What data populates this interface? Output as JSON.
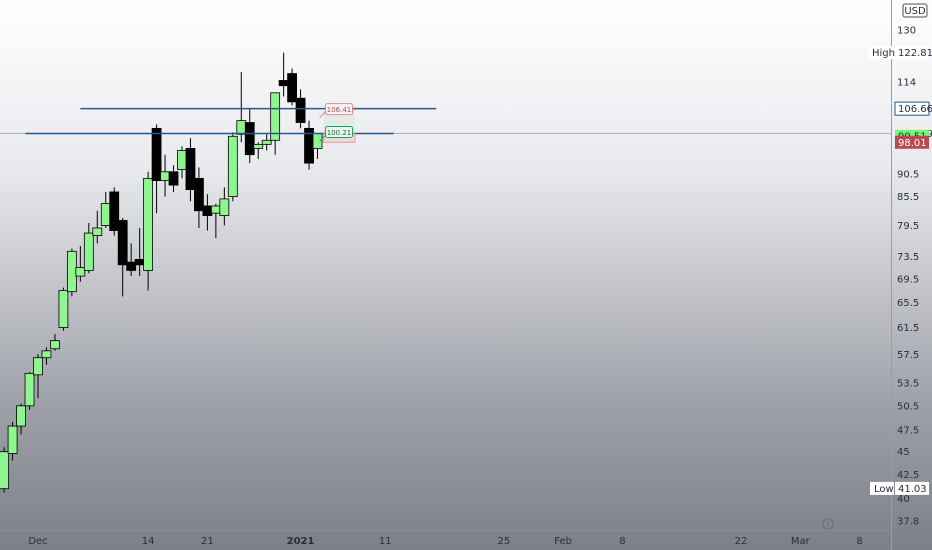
{
  "currency": "USD",
  "chart_data": {
    "type": "candlestick",
    "y_scale": "log",
    "ylim": [
      36.5,
      142
    ],
    "price_ticks": [
      37.8,
      40.0,
      42.5,
      45.0,
      47.5,
      50.5,
      53.5,
      57.5,
      61.5,
      65.5,
      69.5,
      73.5,
      79.5,
      85.5,
      90.5,
      98.0,
      106.66,
      114.0,
      122.81,
      130.0
    ],
    "time_labels": [
      {
        "label": "Dec",
        "day": 0
      },
      {
        "label": "14",
        "day": 13
      },
      {
        "label": "21",
        "day": 20
      },
      {
        "label": "2021",
        "day": 31
      },
      {
        "label": "11",
        "day": 41
      },
      {
        "label": "25",
        "day": 55
      },
      {
        "label": "Feb",
        "day": 62
      },
      {
        "label": "8",
        "day": 69
      },
      {
        "label": "22",
        "day": 83
      },
      {
        "label": "Mar",
        "day": 90
      },
      {
        "label": "8",
        "day": 97
      }
    ],
    "candles": [
      {
        "day": -4,
        "o": 41.0,
        "h": 45.5,
        "l": 40.6,
        "c": 45.0
      },
      {
        "day": -3,
        "o": 44.8,
        "h": 48.5,
        "l": 44.0,
        "c": 48.0
      },
      {
        "day": -2,
        "o": 48.0,
        "h": 50.8,
        "l": 47.0,
        "c": 50.5
      },
      {
        "day": -1,
        "o": 50.5,
        "h": 55.0,
        "l": 50.0,
        "c": 54.8
      },
      {
        "day": 0,
        "o": 54.6,
        "h": 57.5,
        "l": 51.5,
        "c": 57.0
      },
      {
        "day": 1,
        "o": 57.0,
        "h": 58.5,
        "l": 56.0,
        "c": 58.0
      },
      {
        "day": 2,
        "o": 58.3,
        "h": 60.5,
        "l": 58.0,
        "c": 59.5
      },
      {
        "day": 3,
        "o": 61.5,
        "h": 68.0,
        "l": 61.0,
        "c": 67.5
      },
      {
        "day": 4,
        "o": 67.3,
        "h": 75.0,
        "l": 66.5,
        "c": 74.5
      },
      {
        "day": 5,
        "o": 70.0,
        "h": 75.5,
        "l": 69.0,
        "c": 71.5
      },
      {
        "day": 6,
        "o": 71.0,
        "h": 80.0,
        "l": 70.5,
        "c": 78.0
      },
      {
        "day": 7,
        "o": 77.5,
        "h": 82.5,
        "l": 76.0,
        "c": 79.0
      },
      {
        "day": 8,
        "o": 79.5,
        "h": 86.5,
        "l": 79.0,
        "c": 84.0
      },
      {
        "day": 9,
        "o": 86.5,
        "h": 87.5,
        "l": 77.5,
        "c": 78.5
      },
      {
        "day": 10,
        "o": 80.5,
        "h": 81.0,
        "l": 66.5,
        "c": 72.0
      },
      {
        "day": 11,
        "o": 72.5,
        "h": 76.0,
        "l": 70.0,
        "c": 71.0
      },
      {
        "day": 12,
        "o": 73.0,
        "h": 79.0,
        "l": 70.0,
        "c": 72.0
      },
      {
        "day": 13,
        "o": 71.0,
        "h": 91.0,
        "l": 67.5,
        "c": 89.5
      },
      {
        "day": 14,
        "o": 101.5,
        "h": 102.5,
        "l": 82.0,
        "c": 89.0
      },
      {
        "day": 15,
        "o": 89.0,
        "h": 95.0,
        "l": 85.5,
        "c": 91.0
      },
      {
        "day": 16,
        "o": 91.0,
        "h": 92.5,
        "l": 86.5,
        "c": 88.0
      },
      {
        "day": 17,
        "o": 91.5,
        "h": 97.0,
        "l": 89.5,
        "c": 96.0
      },
      {
        "day": 18,
        "o": 96.5,
        "h": 99.0,
        "l": 84.5,
        "c": 87.0
      },
      {
        "day": 19,
        "o": 89.5,
        "h": 92.0,
        "l": 79.0,
        "c": 82.5
      },
      {
        "day": 20,
        "o": 83.5,
        "h": 86.0,
        "l": 78.5,
        "c": 81.5
      },
      {
        "day": 21,
        "o": 82.0,
        "h": 84.0,
        "l": 77.0,
        "c": 83.5
      },
      {
        "day": 22,
        "o": 81.5,
        "h": 87.5,
        "l": 79.5,
        "c": 85.0
      },
      {
        "day": 23,
        "o": 85.5,
        "h": 100.5,
        "l": 84.5,
        "c": 99.5
      },
      {
        "day": 24,
        "o": 100.0,
        "h": 117.0,
        "l": 98.0,
        "c": 103.5
      },
      {
        "day": 25,
        "o": 103.0,
        "h": 106.5,
        "l": 93.0,
        "c": 95.0
      },
      {
        "day": 26,
        "o": 96.5,
        "h": 98.0,
        "l": 94.0,
        "c": 97.5
      },
      {
        "day": 27,
        "o": 97.5,
        "h": 100.0,
        "l": 96.0,
        "c": 98.5
      },
      {
        "day": 28,
        "o": 98.5,
        "h": 111.0,
        "l": 95.0,
        "c": 111.0
      },
      {
        "day": 29,
        "o": 114.5,
        "h": 122.81,
        "l": 110.0,
        "c": 113.0
      },
      {
        "day": 30,
        "o": 116.5,
        "h": 118.0,
        "l": 107.5,
        "c": 108.5
      },
      {
        "day": 31,
        "o": 109.5,
        "h": 112.0,
        "l": 101.5,
        "c": 103.0
      },
      {
        "day": 32,
        "o": 101.5,
        "h": 103.5,
        "l": 91.5,
        "c": 93.0
      },
      {
        "day": 33,
        "o": 96.5,
        "h": 100.21,
        "l": 94.0,
        "c": 100.19
      }
    ],
    "lines": [
      {
        "price": 106.66,
        "from_day": 5,
        "to_day": 47
      },
      {
        "price": 100.19,
        "from_day": -1.5,
        "to_day": 42
      }
    ],
    "position": {
      "day": 33.5,
      "target": 106.41,
      "entry": 100.21,
      "stop": 98.01,
      "width_days": 2.3
    }
  },
  "axis": {
    "high_label": "High",
    "high_value": "122.81",
    "low_label": "Low",
    "low_value": "41.03",
    "current_price": "100.19",
    "line_price": "106.66",
    "green_tag": "99.51",
    "red_tag": "98.01",
    "target_label": "106.41",
    "entry_label": "100.21"
  },
  "colors": {
    "up": "#8ef58f",
    "down": "#000000",
    "line": "#245a8a",
    "target": "#e8868a",
    "entry": "#1aa35c",
    "green_tag": "#7cf27f",
    "red_tag": "#b8494f"
  }
}
